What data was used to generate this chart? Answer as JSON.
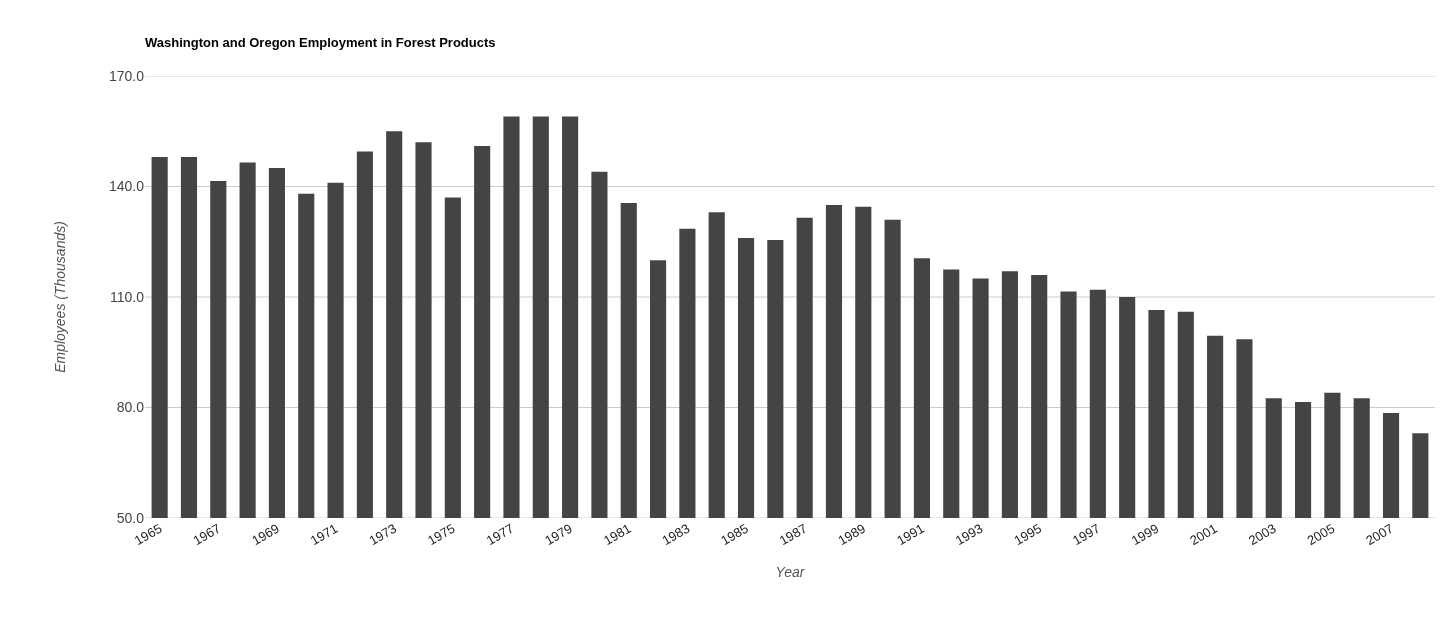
{
  "chart_data": {
    "type": "bar",
    "title": "Washington and Oregon Employment in Forest Products",
    "xlabel": "Year",
    "ylabel": "Employees (Thousands)",
    "categories": [
      "1965",
      null,
      "1967",
      null,
      "1969",
      null,
      "1971",
      null,
      "1973",
      null,
      "1975",
      null,
      "1977",
      null,
      "1979",
      null,
      "1981",
      null,
      "1983",
      null,
      "1985",
      null,
      "1987",
      null,
      "1989",
      null,
      "1991",
      null,
      "1993",
      null,
      "1995",
      null,
      "1997",
      null,
      "1999",
      null,
      "2001",
      null,
      "2003",
      null,
      "2005",
      null,
      "2007",
      null
    ],
    "values": [
      148,
      148,
      141.5,
      146.5,
      145,
      138,
      141,
      149.5,
      155,
      152,
      137,
      151,
      159,
      159,
      159,
      144,
      135.5,
      120,
      128.5,
      133,
      126,
      125.5,
      131.5,
      135,
      134.5,
      131,
      120.5,
      117.5,
      115,
      117,
      116,
      111.5,
      112,
      110,
      106.5,
      106,
      99.5,
      98.5,
      82.5,
      81.5,
      84,
      82.5,
      78.5,
      73
    ],
    "color": "#444444",
    "ylim": [
      50,
      170
    ],
    "yticks": [
      {
        "value": 50,
        "label": "50.0"
      },
      {
        "value": 80,
        "label": "80.0"
      },
      {
        "value": 110,
        "label": "110.0"
      },
      {
        "value": 140,
        "label": "140.0"
      },
      {
        "value": 170,
        "label": "170.0"
      }
    ],
    "grid": "y"
  }
}
